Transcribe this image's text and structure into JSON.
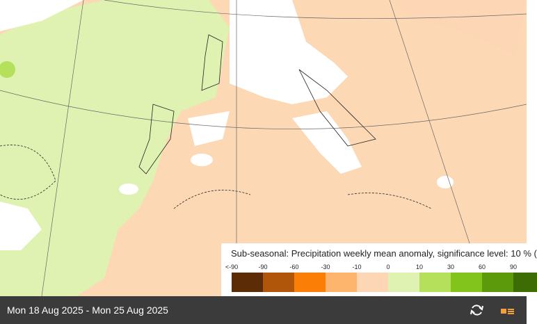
{
  "legend": {
    "title": "Sub-seasonal: Precipitation weekly mean anomaly, significance level: 10 % (",
    "ticks": [
      "<-90",
      "-90",
      "-60",
      "-30",
      "-10",
      "0",
      "10",
      "30",
      "60",
      "90"
    ],
    "colors": [
      "#5c2c06",
      "#b0560a",
      "#fb7f06",
      "#fdb46c",
      "#fdd7b5",
      "#e0f2b2",
      "#b4e05c",
      "#83c41c",
      "#5c9a0c",
      "#3e6c04"
    ]
  },
  "footer": {
    "date_range": "Mon 18 Aug 2025 - Mon 25 Aug 2025"
  }
}
